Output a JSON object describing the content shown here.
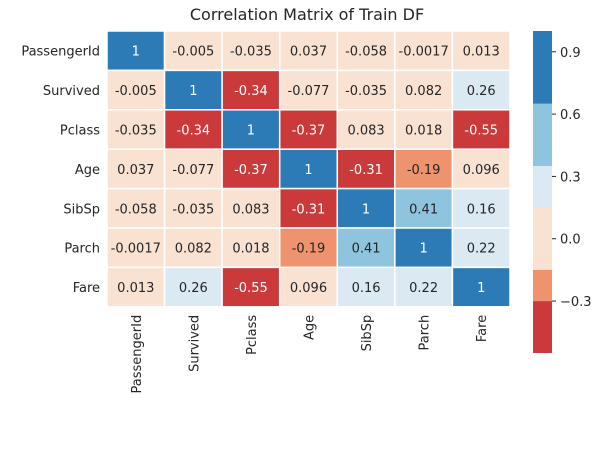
{
  "chart_data": {
    "type": "heatmap",
    "title": "Correlation Matrix of Train DF",
    "labels": [
      "PassengerId",
      "Survived",
      "Pclass",
      "Age",
      "SibSp",
      "Parch",
      "Fare"
    ],
    "matrix": [
      [
        1,
        -0.005,
        -0.035,
        0.037,
        -0.058,
        -0.0017,
        0.013
      ],
      [
        -0.005,
        1,
        -0.34,
        -0.077,
        -0.035,
        0.082,
        0.26
      ],
      [
        -0.035,
        -0.34,
        1,
        -0.37,
        0.083,
        0.018,
        -0.55
      ],
      [
        0.037,
        -0.077,
        -0.37,
        1,
        -0.31,
        -0.19,
        0.096
      ],
      [
        -0.058,
        -0.035,
        0.083,
        -0.31,
        1,
        0.41,
        0.16
      ],
      [
        -0.0017,
        0.082,
        0.018,
        -0.19,
        0.41,
        1,
        0.22
      ],
      [
        0.013,
        0.26,
        -0.55,
        0.096,
        0.16,
        0.22,
        1
      ]
    ],
    "colorbar": {
      "ticks": [
        0.9,
        0.6,
        0.3,
        0.0,
        -0.3
      ],
      "tick_labels": [
        "0.9",
        "0.6",
        "0.3",
        "0.0",
        "−0.3"
      ],
      "bands": [
        {
          "min": -0.55,
          "max": -0.3,
          "color": "#cb3a3b"
        },
        {
          "min": -0.3,
          "max": -0.15,
          "color": "#ee936d"
        },
        {
          "min": -0.15,
          "max": 0.15,
          "color": "#fae2d3"
        },
        {
          "min": 0.15,
          "max": 0.35,
          "color": "#dbe9f3"
        },
        {
          "min": 0.35,
          "max": 0.65,
          "color": "#8ec4de"
        },
        {
          "min": 0.65,
          "max": 1.0,
          "color": "#2c7bb6"
        }
      ]
    },
    "grid": true
  }
}
